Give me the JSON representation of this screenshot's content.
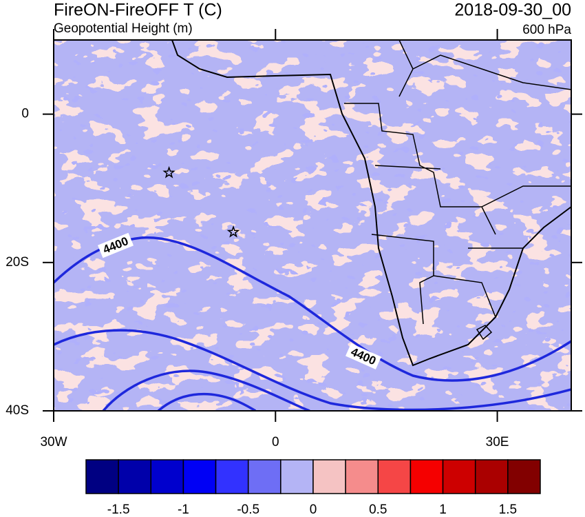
{
  "header": {
    "title": "FireON-FireOFF T (C)",
    "subtitle": "Geopotential Height (m)",
    "date": "2018-09-30_00",
    "level": "600 hPa"
  },
  "chart_data": {
    "type": "map",
    "xlim": [
      -30,
      40
    ],
    "ylim": [
      -40,
      10
    ],
    "xticks": [
      {
        "value": -30,
        "label": "30W"
      },
      0,
      {
        "value": 30,
        "label": "30E"
      }
    ],
    "yticks": [
      0,
      {
        "value": -20,
        "label": "20S"
      },
      {
        "value": -40,
        "label": "40S"
      }
    ],
    "contour_levels": [
      4400
    ],
    "contour_color": "#1e28dc",
    "markers": [
      {
        "lon": -14.4,
        "lat": -7.9
      },
      {
        "lon": -5.7,
        "lat": -15.9
      }
    ],
    "colorbar": {
      "lim": [
        -1.75,
        1.75
      ],
      "ticks": [
        -1.5,
        -1,
        -0.5,
        0,
        0.5,
        1,
        1.5
      ],
      "colors": [
        "#000082",
        "#0000aa",
        "#0000cd",
        "#0000f5",
        "#3232ff",
        "#6e6ef5",
        "#b4b4f5",
        "#f5c3c3",
        "#f58c8c",
        "#f54646",
        "#f50000",
        "#cd0000",
        "#aa0000",
        "#820000"
      ]
    }
  }
}
